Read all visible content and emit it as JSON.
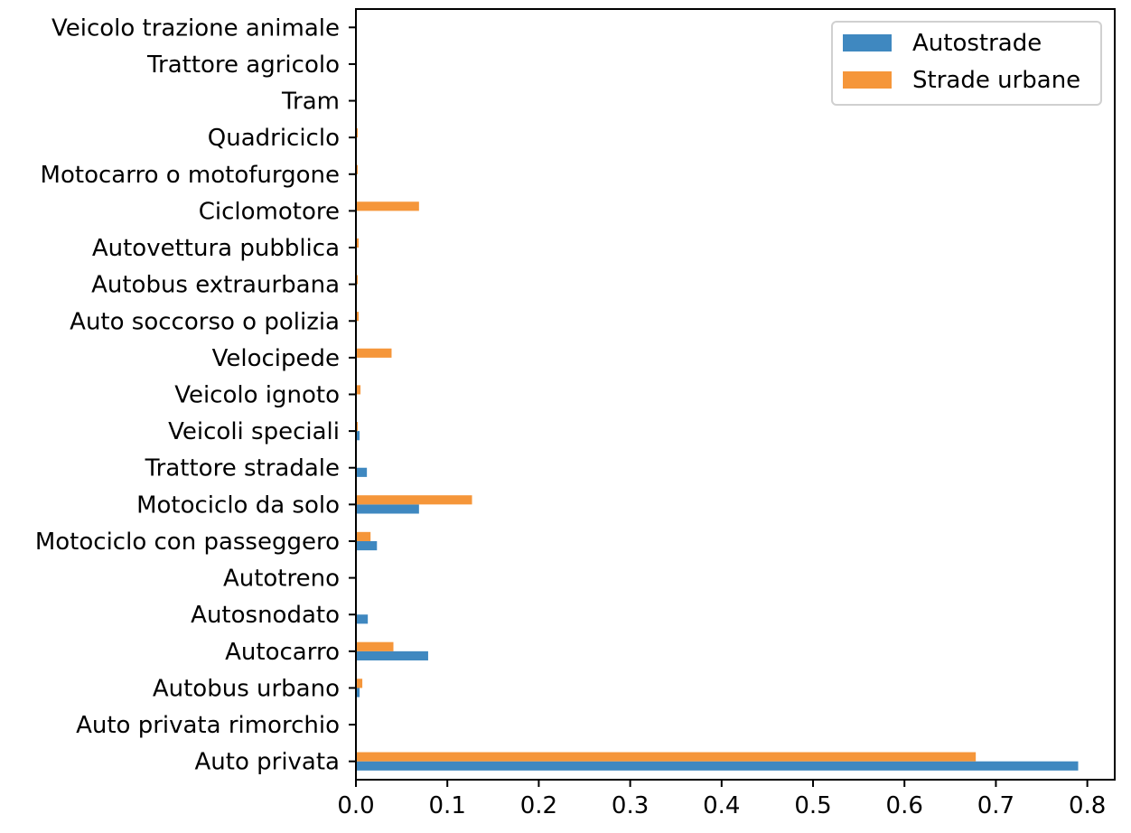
{
  "chart_data": {
    "type": "bar",
    "orientation": "horizontal",
    "title": "",
    "xlabel": "",
    "ylabel": "",
    "xlim": [
      0,
      0.83
    ],
    "xticks": [
      "0.0",
      "0.1",
      "0.2",
      "0.3",
      "0.4",
      "0.5",
      "0.6",
      "0.7",
      "0.8"
    ],
    "grid": false,
    "legend_position": "top-right",
    "categories": [
      "Auto privata",
      "Auto privata rimorchio",
      "Autobus urbano",
      "Autocarro",
      "Autosnodato",
      "Autotreno",
      "Motociclo con passeggero",
      "Motociclo da solo",
      "Trattore stradale",
      "Veicoli speciali",
      "Veicolo ignoto",
      "Velocipede",
      "Auto soccorso o polizia",
      "Autobus extraurbana",
      "Autovettura pubblica",
      "Ciclomotore",
      "Motocarro o motofurgone",
      "Quadriciclo",
      "Tram",
      "Trattore agricolo",
      "Veicolo trazione animale"
    ],
    "series": [
      {
        "name": "Autostrade",
        "color": "#3f88c0",
        "values": [
          0.79,
          0.0,
          0.004,
          0.079,
          0.013,
          0.0,
          0.023,
          0.069,
          0.012,
          0.004,
          0.0,
          0.0,
          0.0,
          0.0,
          0.0,
          0.0,
          0.0,
          0.0,
          0.0,
          0.0,
          0.0
        ]
      },
      {
        "name": "Strade urbane",
        "color": "#f5963a",
        "values": [
          0.678,
          0.0,
          0.007,
          0.041,
          0.0,
          0.0,
          0.016,
          0.127,
          0.0,
          0.002,
          0.005,
          0.039,
          0.003,
          0.002,
          0.003,
          0.069,
          0.002,
          0.002,
          0.0,
          0.0,
          0.0
        ]
      }
    ]
  }
}
